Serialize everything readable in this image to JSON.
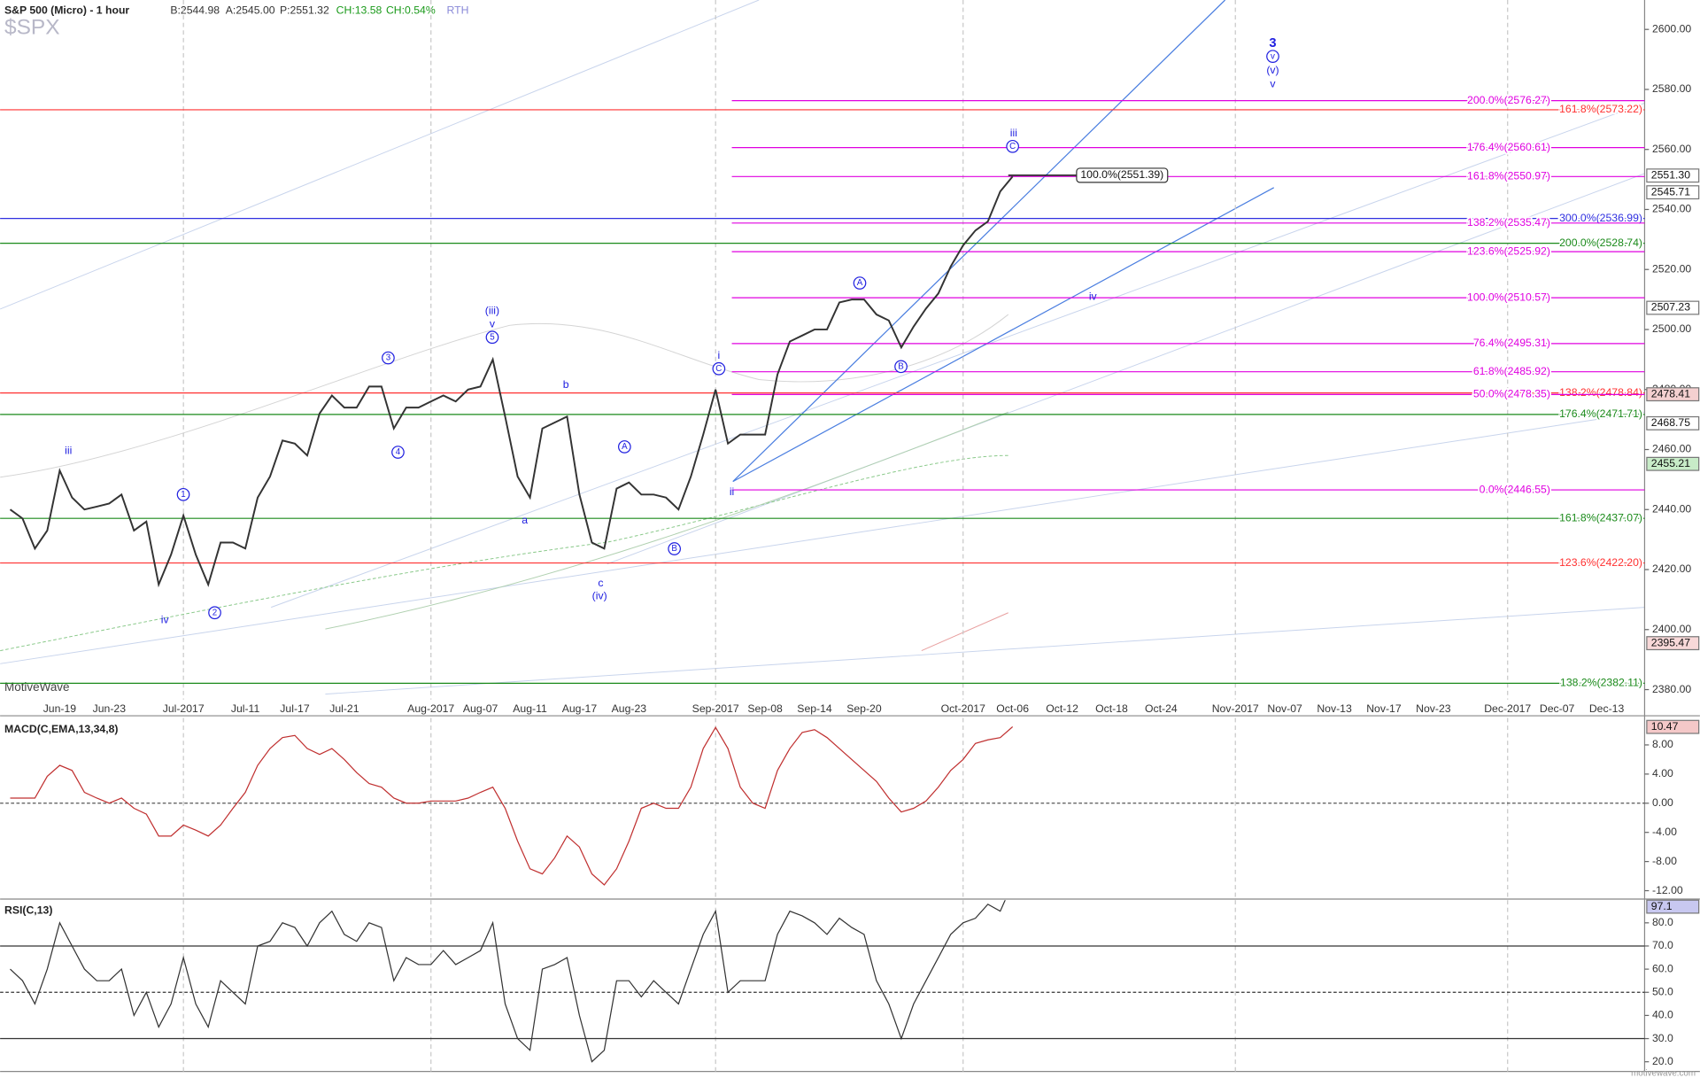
{
  "chart_data": [
    {
      "type": "line",
      "title": "S&P 500 (Micro) - 1 hour",
      "symbol": "$SPX",
      "watermark": "MotiveWave",
      "footer": "motivewave.com",
      "quote": [
        {
          "text": "B:2544.98",
          "color": "#333333"
        },
        {
          "text": "A:2545.00",
          "color": "#333333"
        },
        {
          "text": "P:2551.32",
          "color": "#333333"
        },
        {
          "text": "CH:13.58",
          "color": "#1a9a1a"
        },
        {
          "text": "CH:0.54%",
          "color": "#1a9a1a"
        },
        {
          "text": "RTH",
          "color": "#8a8ad8"
        }
      ],
      "categories": [
        null,
        null,
        null,
        null,
        "Jun-19",
        null,
        null,
        null,
        "Jun-23",
        null,
        null,
        null,
        null,
        null,
        "Jul-2017",
        null,
        null,
        null,
        null,
        "Jul-11",
        null,
        null,
        null,
        "Jul-17",
        null,
        null,
        null,
        "Jul-21",
        null,
        null,
        null,
        null,
        null,
        null,
        "Aug-2017",
        null,
        null,
        null,
        "Aug-07",
        null,
        null,
        null,
        "Aug-11",
        null,
        null,
        null,
        "Aug-17",
        null,
        null,
        null,
        "Aug-23",
        null,
        null,
        null,
        null,
        null,
        null,
        "Sep-2017",
        null,
        null,
        null,
        "Sep-08",
        null,
        null,
        null,
        "Sep-14",
        null,
        null,
        null,
        "Sep-20",
        null,
        null,
        null,
        null,
        null,
        null,
        null,
        "Oct-2017",
        null,
        null,
        null,
        "Oct-06",
        null,
        null,
        null,
        "Oct-12",
        null,
        null,
        null,
        "Oct-18",
        null,
        null,
        null,
        "Oct-24",
        null,
        null,
        null,
        null,
        null,
        "Nov-2017",
        null,
        null,
        null,
        "Nov-07",
        null,
        null,
        null,
        "Nov-13",
        null,
        null,
        null,
        "Nov-17",
        null,
        null,
        null,
        "Nov-23",
        null,
        null,
        null,
        null,
        null,
        "Dec-2017",
        null,
        null,
        null,
        "Dec-07",
        null,
        null,
        null,
        "Dec-13",
        null,
        null
      ],
      "series": [
        {
          "name": "SPX",
          "color": "#333333",
          "values": [
            2440,
            2437,
            2427,
            2433,
            2453,
            2444,
            2440,
            2441,
            2442,
            2445,
            2433,
            2436,
            2415,
            2425,
            2438,
            2425,
            2415,
            2429,
            2429,
            2427,
            2444,
            2451,
            2463,
            2462,
            2458,
            2472,
            2478,
            2474,
            2474,
            2481,
            2481,
            2467,
            2474,
            2474,
            2476,
            2478,
            2476,
            2480,
            2481,
            2490,
            2471,
            2451,
            2444,
            2467,
            2469,
            2471,
            2445,
            2429,
            2427,
            2447,
            2449,
            2445,
            2445,
            2444,
            2440,
            2451,
            2465,
            2480,
            2462,
            2465,
            2465,
            2465,
            2485,
            2496,
            2498,
            2500,
            2500,
            2509,
            2510,
            2510,
            2505,
            2503,
            2494,
            2501,
            2507,
            2512,
            2521,
            2528,
            2533,
            2536,
            2546,
            2551,
            null,
            null,
            null,
            null,
            null,
            null,
            null,
            null,
            null,
            null,
            null,
            null,
            null,
            null,
            null,
            null,
            null,
            null,
            null,
            null,
            null,
            null,
            null,
            null,
            null,
            null,
            null,
            null,
            null,
            null,
            null,
            null,
            null,
            null,
            null,
            null,
            null,
            null,
            null,
            null,
            null,
            null,
            null,
            null,
            null,
            null,
            null,
            null,
            null,
            null
          ]
        }
      ],
      "ylim": [
        2376.7,
        2609.8
      ],
      "yticks": [
        {
          "value": 2600,
          "label": "2600.00"
        },
        {
          "value": 2580,
          "label": "2580.00"
        },
        {
          "value": 2560,
          "label": "2560.00"
        },
        {
          "value": 2540,
          "label": "2540.00"
        },
        {
          "value": 2520,
          "label": "2520.00"
        },
        {
          "value": 2500,
          "label": "2500.00"
        },
        {
          "value": 2480,
          "label": "2480.00"
        },
        {
          "value": 2460,
          "label": "2460.00"
        },
        {
          "value": 2440,
          "label": "2440.00"
        },
        {
          "value": 2420,
          "label": "2420.00"
        },
        {
          "value": 2400,
          "label": "2400.00"
        },
        {
          "value": 2380,
          "label": "2380.00"
        }
      ],
      "fib_levels": {
        "color": "#e000e0",
        "levels": [
          {
            "label": "200.0%(2576.27)",
            "value": 2576.27
          },
          {
            "label": "176.4%(2560.61)",
            "value": 2560.61
          },
          {
            "label": "161.8%(2550.97)",
            "value": 2550.97
          },
          {
            "label": "138.2%(2535.47)",
            "value": 2535.47
          },
          {
            "label": "123.6%(2525.92)",
            "value": 2525.92
          },
          {
            "label": "100.0%(2510.57)",
            "value": 2510.57
          },
          {
            "label": "76.4%(2495.31)",
            "value": 2495.31
          },
          {
            "label": "61.8%(2485.92)",
            "value": 2485.92
          },
          {
            "label": "50.0%(2478.35)",
            "value": 2478.35
          },
          {
            "label": "0.0%(2446.55)",
            "value": 2446.55
          }
        ]
      },
      "levels": [
        {
          "label": "161.8%(2573.22)",
          "value": 2573.22,
          "color": "#ff3030"
        },
        {
          "label": "300.0%(2536.99)",
          "value": 2536.99,
          "color": "#3030e0"
        },
        {
          "label": "200.0%(2528.74)",
          "value": 2528.74,
          "color": "#1a8a1a"
        },
        {
          "label": "138.2%(2478.84)",
          "value": 2478.84,
          "color": "#ff3030"
        },
        {
          "label": "176.4%(2471.71)",
          "value": 2471.71,
          "color": "#1a8a1a"
        },
        {
          "label": "161.8%(2437.07)",
          "value": 2437.07,
          "color": "#1a8a1a"
        },
        {
          "label": "123.6%(2422.20)",
          "value": 2422.2,
          "color": "#ff3030"
        },
        {
          "label": "138.2%(2382.11)",
          "value": 2382.11,
          "color": "#1a8a1a"
        }
      ],
      "target": {
        "label": "100.0%(2551.39)",
        "value": 2551.39
      },
      "price_markers": [
        {
          "label": "2551.30",
          "value": 2551.3,
          "color": "#ffffff"
        },
        {
          "label": "2545.71",
          "value": 2545.71,
          "color": "#ffffff"
        },
        {
          "label": "2507.23",
          "value": 2507.23,
          "color": "#ffffff"
        },
        {
          "label": "2478.41",
          "value": 2478.41,
          "color": "#f4d0d0"
        },
        {
          "label": "2468.75",
          "value": 2468.75,
          "color": "#ffffff"
        },
        {
          "label": "2455.21",
          "value": 2455.21,
          "color": "#c8ecc8"
        },
        {
          "label": "2395.47",
          "value": 2395.47,
          "color": "#f8d8d8"
        }
      ],
      "wave_labels": [
        "iii",
        "1",
        "iv",
        "2",
        "3",
        "4",
        "(iii)",
        "v",
        "5",
        "a",
        "b",
        "c",
        "(iv)",
        "A",
        "B",
        "i",
        "C",
        "ii",
        "A",
        "B",
        "iii",
        "C",
        "iv",
        "3",
        "v",
        "(v)",
        "v"
      ]
    },
    {
      "type": "line",
      "title": "MACD(C,EMA,13,34,8)",
      "series": [
        {
          "name": "MACD",
          "color": "#c03030",
          "values": [
            0.7,
            0.7,
            0.7,
            3.7,
            5.2,
            4.5,
            1.5,
            0.7,
            0,
            0.7,
            -0.7,
            -1.5,
            -4.5,
            -4.5,
            -3,
            -3.7,
            -4.5,
            -3,
            -0.7,
            1.5,
            5.2,
            7.5,
            9,
            9.3,
            7.5,
            6.7,
            7.5,
            6,
            4.2,
            2.7,
            2.2,
            0.7,
            0,
            0,
            0.3,
            0.3,
            0.3,
            0.7,
            1.5,
            2.2,
            -0.7,
            -5.2,
            -9,
            -9.7,
            -7.5,
            -4.5,
            -6,
            -9.7,
            -11.2,
            -9,
            -5.2,
            -0.7,
            0,
            -0.7,
            -0.7,
            2.2,
            7.5,
            10.4,
            7.5,
            2.2,
            0,
            -0.7,
            4.5,
            7.5,
            9.7,
            10.1,
            9,
            7.5,
            6,
            4.5,
            3,
            0.7,
            -1.2,
            -0.7,
            0.3,
            2.2,
            4.5,
            6,
            8.2,
            8.7,
            9,
            10.5
          ]
        }
      ],
      "ylim": [
        -13,
        11.7
      ],
      "yticks": [
        {
          "value": 8,
          "label": "8.00"
        },
        {
          "value": 4,
          "label": "4.00"
        },
        {
          "value": 0,
          "label": "0.00"
        },
        {
          "value": -4,
          "label": "-4.00"
        },
        {
          "value": -8,
          "label": "-8.00"
        },
        {
          "value": -12,
          "label": "-12.00"
        }
      ],
      "last_value": {
        "label": "10.47",
        "value": 10.47,
        "color": "#f4c8c8"
      }
    },
    {
      "type": "line",
      "title": "RSI(C,13)",
      "series": [
        {
          "name": "RSI",
          "color": "#333333",
          "values": [
            60,
            55,
            45,
            60,
            80,
            70,
            60,
            55,
            55,
            60,
            40,
            50,
            35,
            45,
            65,
            45,
            35,
            55,
            50,
            45,
            70,
            72,
            80,
            78,
            70,
            80,
            85,
            75,
            72,
            80,
            78,
            55,
            65,
            62,
            62,
            68,
            62,
            65,
            68,
            80,
            45,
            30,
            25,
            60,
            62,
            65,
            40,
            20,
            25,
            55,
            55,
            48,
            55,
            50,
            45,
            60,
            75,
            85,
            50,
            55,
            55,
            55,
            75,
            85,
            83,
            80,
            75,
            82,
            78,
            75,
            55,
            45,
            30,
            45,
            55,
            65,
            75,
            80,
            82,
            88,
            85,
            97.1
          ]
        }
      ],
      "ylim": [
        15.8,
        89.8
      ],
      "yticks": [
        {
          "value": 80,
          "label": "80.0"
        },
        {
          "value": 70,
          "label": "70.0"
        },
        {
          "value": 60,
          "label": "60.0"
        },
        {
          "value": 50,
          "label": "50.0"
        },
        {
          "value": 40,
          "label": "40.0"
        },
        {
          "value": 30,
          "label": "30.0"
        },
        {
          "value": 20,
          "label": "20.0"
        }
      ],
      "hlines": [
        {
          "value": 70,
          "style": "solid"
        },
        {
          "value": 50,
          "style": "dashed"
        },
        {
          "value": 30,
          "style": "solid"
        }
      ],
      "last_value": {
        "label": "97.1",
        "value": 97.1,
        "color": "#c8c8f0"
      }
    }
  ]
}
